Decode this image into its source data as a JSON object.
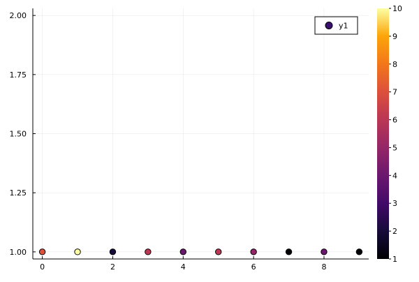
{
  "chart_data": {
    "type": "scatter",
    "title": "",
    "xlabel": "",
    "ylabel": "",
    "xlim": [
      -0.27,
      9.27
    ],
    "ylim": [
      0.97,
      2.03
    ],
    "x_ticks": [
      0,
      2,
      4,
      6,
      8
    ],
    "x_tick_labels": [
      "0",
      "2",
      "4",
      "6",
      "8"
    ],
    "y_ticks": [
      1.0,
      1.25,
      1.5,
      1.75,
      2.0
    ],
    "y_tick_labels": [
      "1.00",
      "1.25",
      "1.50",
      "1.75",
      "2.00"
    ],
    "grid": true,
    "legend": {
      "position": "top-right",
      "entries": [
        "y1"
      ]
    },
    "series": [
      {
        "name": "y1",
        "x": [
          0,
          1,
          2,
          3,
          4,
          5,
          6,
          7,
          8,
          9
        ],
        "y": [
          1,
          1,
          1,
          1,
          1,
          1,
          1,
          1,
          1,
          1
        ],
        "color_values": [
          7,
          10,
          2,
          6,
          4,
          6,
          5,
          1,
          4,
          1
        ],
        "legend_color": "#3b0f70"
      }
    ],
    "colorbar": {
      "colormap": "inferno",
      "range": [
        1,
        10
      ],
      "ticks": [
        1,
        2,
        3,
        4,
        5,
        6,
        7,
        8,
        9,
        10
      ],
      "tick_labels": [
        "1",
        "2",
        "3",
        "4",
        "5",
        "6",
        "7",
        "8",
        "9",
        "10"
      ]
    }
  }
}
